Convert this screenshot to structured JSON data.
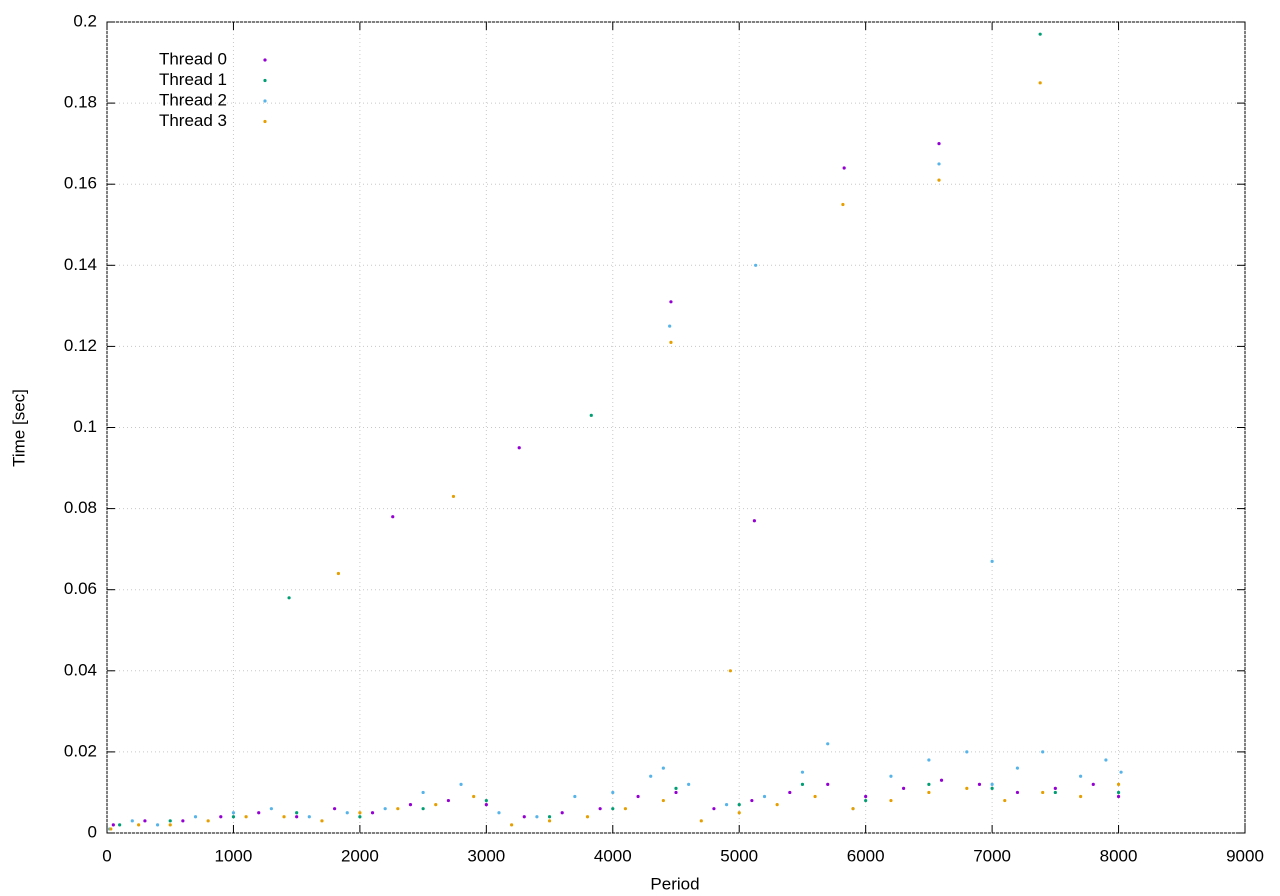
{
  "chart_data": {
    "type": "scatter",
    "x_label": "Period",
    "y_label": "Time [sec]",
    "xlim": [
      0,
      9000
    ],
    "xticks": [
      0,
      1000,
      2000,
      3000,
      4000,
      5000,
      6000,
      7000,
      8000,
      9000
    ],
    "ylim": [
      0,
      0.2
    ],
    "yticks": [
      0,
      0.02,
      0.04,
      0.06,
      0.08,
      0.1,
      0.12,
      0.14,
      0.16,
      0.18,
      0.2
    ],
    "grid": true,
    "legend": "top-left",
    "series": [
      {
        "name": "Thread 0",
        "color": "#9400d3",
        "x": [
          50,
          300,
          600,
          900,
          1200,
          1500,
          1800,
          2100,
          2400,
          2700,
          3000,
          3300,
          3600,
          3900,
          4200,
          4500,
          4800,
          5100,
          5400,
          5700,
          6000,
          6300,
          6600,
          6900,
          7200,
          7500,
          7800,
          8000,
          2260,
          3260,
          4460,
          5830,
          6580,
          5120
        ],
        "values": [
          0.002,
          0.003,
          0.003,
          0.004,
          0.005,
          0.004,
          0.006,
          0.005,
          0.007,
          0.008,
          0.007,
          0.004,
          0.005,
          0.006,
          0.009,
          0.01,
          0.006,
          0.008,
          0.01,
          0.012,
          0.009,
          0.011,
          0.013,
          0.012,
          0.01,
          0.011,
          0.012,
          0.009,
          0.078,
          0.095,
          0.131,
          0.164,
          0.17,
          0.077
        ]
      },
      {
        "name": "Thread 1",
        "color": "#009e73",
        "x": [
          100,
          500,
          1000,
          1500,
          2000,
          2500,
          3000,
          3500,
          4000,
          4500,
          5000,
          5500,
          6000,
          6500,
          7000,
          7500,
          8000,
          1440,
          3830,
          7380
        ],
        "values": [
          0.002,
          0.003,
          0.004,
          0.005,
          0.004,
          0.006,
          0.008,
          0.004,
          0.006,
          0.011,
          0.007,
          0.012,
          0.008,
          0.012,
          0.011,
          0.01,
          0.01,
          0.058,
          0.103,
          0.197
        ]
      },
      {
        "name": "Thread 2",
        "color": "#56b4e9",
        "x": [
          20,
          200,
          400,
          700,
          1000,
          1300,
          1600,
          1900,
          2200,
          2500,
          2800,
          3100,
          3400,
          3700,
          4000,
          4300,
          4400,
          4600,
          4900,
          5200,
          5500,
          5700,
          5900,
          6200,
          6500,
          6800,
          7000,
          7200,
          7400,
          7700,
          7900,
          8020,
          4450,
          5130,
          6580,
          7000
        ],
        "values": [
          0.001,
          0.003,
          0.002,
          0.004,
          0.005,
          0.006,
          0.004,
          0.005,
          0.006,
          0.01,
          0.012,
          0.005,
          0.004,
          0.009,
          0.01,
          0.014,
          0.016,
          0.012,
          0.007,
          0.009,
          0.015,
          0.022,
          0.006,
          0.014,
          0.018,
          0.02,
          0.012,
          0.016,
          0.02,
          0.014,
          0.018,
          0.015,
          0.125,
          0.14,
          0.165,
          0.067
        ]
      },
      {
        "name": "Thread 3",
        "color": "#e69f00",
        "x": [
          30,
          250,
          500,
          800,
          1100,
          1400,
          1700,
          2000,
          2300,
          2600,
          2900,
          3200,
          3500,
          3800,
          4100,
          4400,
          4700,
          5000,
          5300,
          5600,
          5900,
          6200,
          6500,
          6800,
          7100,
          7400,
          7700,
          8000,
          1830,
          2740,
          4460,
          5820,
          6580,
          7380,
          4930
        ],
        "values": [
          0.001,
          0.002,
          0.002,
          0.003,
          0.004,
          0.004,
          0.003,
          0.005,
          0.006,
          0.007,
          0.009,
          0.002,
          0.003,
          0.004,
          0.006,
          0.008,
          0.003,
          0.005,
          0.007,
          0.009,
          0.006,
          0.008,
          0.01,
          0.011,
          0.008,
          0.01,
          0.009,
          0.012,
          0.064,
          0.083,
          0.121,
          0.155,
          0.161,
          0.185,
          0.04
        ]
      }
    ]
  }
}
